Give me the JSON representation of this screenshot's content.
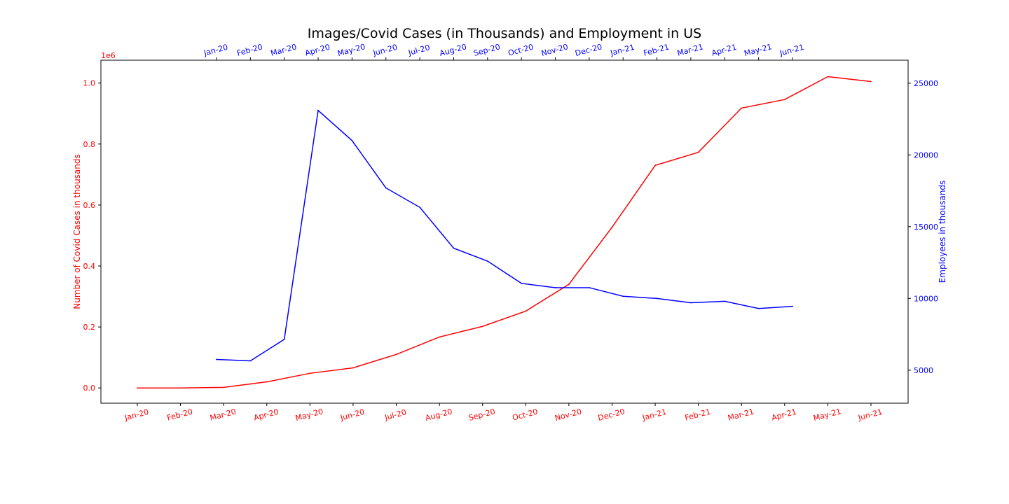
{
  "chart_data": {
    "type": "line",
    "title": "Images/Covid Cases (in Thousands) and Employment in US",
    "covid": {
      "name": "Number of Covid Cases in thousands",
      "color": "#ff0000",
      "ylabel": "Number of Covid Cases in thousands",
      "offset_label": "1e6",
      "ylim": [
        -0.05,
        1.075
      ],
      "yticks": [
        0.0,
        0.2,
        0.4,
        0.6,
        0.8,
        1.0
      ],
      "ytick_labels": [
        "0.0",
        "0.2",
        "0.4",
        "0.6",
        "0.8",
        "1.0"
      ],
      "categories": [
        "Jan-20",
        "Feb-20",
        "Mar-20",
        "Apr-20",
        "May-20",
        "Jun-20",
        "Jul-20",
        "Aug-20",
        "Sep-20",
        "Oct-20",
        "Nov-20",
        "Dec-20",
        "Jan-21",
        "Feb-21",
        "Mar-21",
        "Apr-21",
        "May-21",
        "Jun-21"
      ],
      "values": [
        0.0,
        0.0,
        0.002,
        0.02,
        0.048,
        0.066,
        0.11,
        0.167,
        0.202,
        0.252,
        0.34,
        0.527,
        0.73,
        0.773,
        0.918,
        0.946,
        1.021,
        1.005
      ]
    },
    "employment": {
      "name": "Employees in thousands",
      "color": "#0000ff",
      "ylabel": "Employees in thousands",
      "ylim": [
        2700,
        26600
      ],
      "yticks": [
        5000,
        10000,
        15000,
        20000,
        25000
      ],
      "ytick_labels": [
        "5000",
        "10000",
        "15000",
        "20000",
        "25000"
      ],
      "categories": [
        "Jan-20",
        "Feb-20",
        "Mar-20",
        "Apr-20",
        "May-20",
        "Jun-20",
        "Jul-20",
        "Aug-20",
        "Sep-20",
        "Oct-20",
        "Nov-20",
        "Dec-20",
        "Jan-21",
        "Feb-21",
        "Mar-21",
        "Apr-21",
        "May-21",
        "Jun-21"
      ],
      "values": [
        5750,
        5650,
        7150,
        23100,
        21000,
        17700,
        16350,
        13500,
        12600,
        11050,
        10750,
        10750,
        10150,
        10000,
        9700,
        9800,
        9300,
        9450
      ]
    }
  }
}
